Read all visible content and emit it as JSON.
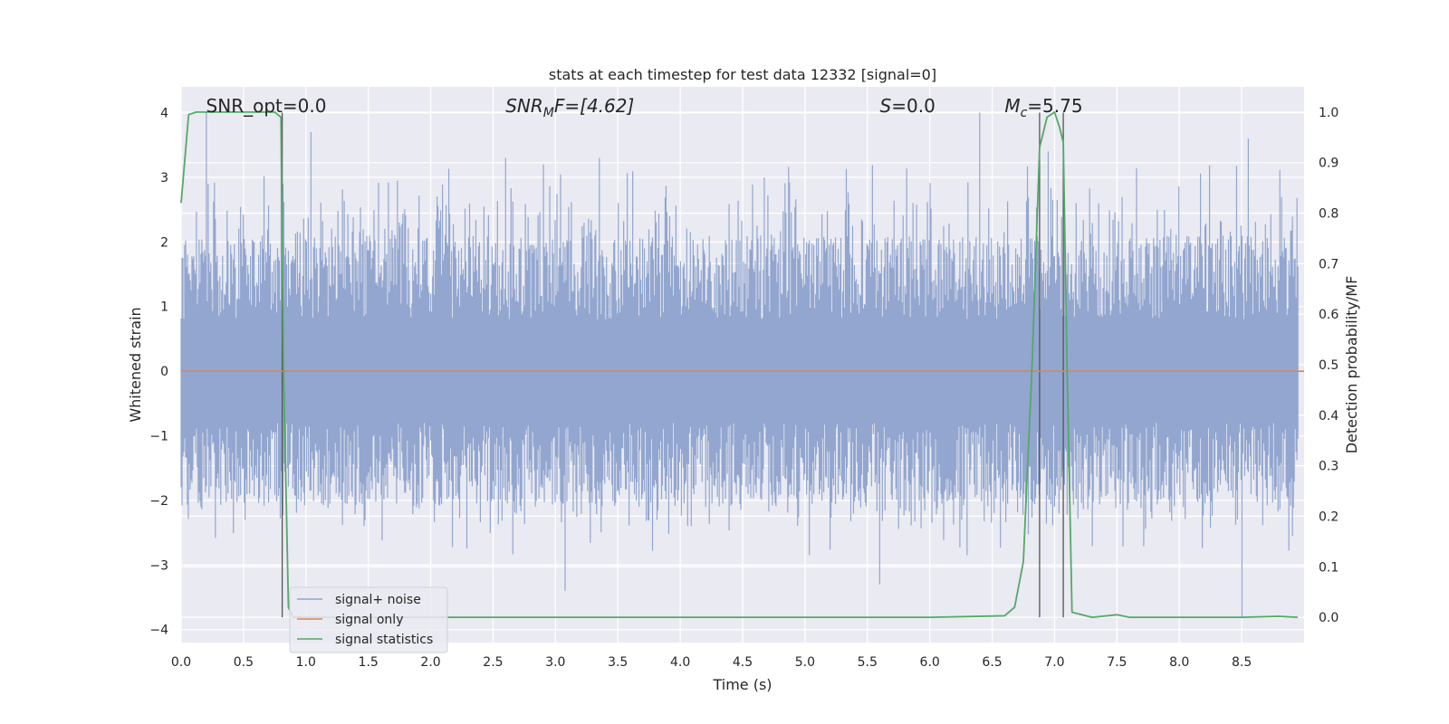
{
  "chart_data": {
    "type": "line",
    "title": "stats at each timestep for test data 12332 [signal=0]",
    "xlabel": "Time (s)",
    "ylabel": "Whitened strain",
    "y2label": "Detection probability/MF",
    "xlim": [
      0.0,
      9.0
    ],
    "ylim": [
      -4.2,
      4.4
    ],
    "y2lim": [
      -0.05,
      1.05
    ],
    "xticks": [
      0.0,
      0.5,
      1.0,
      1.5,
      2.0,
      2.5,
      3.0,
      3.5,
      4.0,
      4.5,
      5.0,
      5.5,
      6.0,
      6.5,
      7.0,
      7.5,
      8.0,
      8.5
    ],
    "xtick_labels": [
      "0.0",
      "0.5",
      "1.0",
      "1.5",
      "2.0",
      "2.5",
      "3.0",
      "3.5",
      "4.0",
      "4.5",
      "5.0",
      "5.5",
      "6.0",
      "6.5",
      "7.0",
      "7.5",
      "8.0",
      "8.5"
    ],
    "yticks": [
      -4,
      -3,
      -2,
      -1,
      0,
      1,
      2,
      3,
      4
    ],
    "ytick_labels": [
      "−4",
      "−3",
      "−2",
      "−1",
      "0",
      "1",
      "2",
      "3",
      "4"
    ],
    "y2ticks": [
      0.0,
      0.1,
      0.2,
      0.3,
      0.4,
      0.5,
      0.6,
      0.7,
      0.8,
      0.9,
      1.0
    ],
    "y2tick_labels": [
      "0.0",
      "0.1",
      "0.2",
      "0.3",
      "0.4",
      "0.5",
      "0.6",
      "0.7",
      "0.8",
      "0.9",
      "1.0"
    ],
    "grid": true,
    "legend_position": "lower-left",
    "annotations": {
      "snr_opt": {
        "label": "SNR_opt=0.0",
        "x": 0.2
      },
      "snr_mf": {
        "prefix": "SNR",
        "sub": "M",
        "suffix": "F=[4.62]",
        "x": 2.6
      },
      "s_stat": {
        "main": "S",
        "rest": "=0.0",
        "x": 5.6
      },
      "mc": {
        "main": "M",
        "sub": "c",
        "rest": "=5.75",
        "x": 6.6
      }
    },
    "vertical_markers_seconds": [
      0.81,
      6.88,
      7.07
    ],
    "series": [
      {
        "name": "signal+ noise",
        "color": "#92a6cf",
        "kind": "noise",
        "axis": "left",
        "typical_envelope": [
          -2.4,
          2.7
        ],
        "spike_peaks": [
          {
            "x": 0.2,
            "y": 4.0
          },
          {
            "x": 0.8,
            "y": 3.9
          },
          {
            "x": 1.04,
            "y": 3.7
          },
          {
            "x": 2.6,
            "y": 3.3
          },
          {
            "x": 3.35,
            "y": 3.3
          },
          {
            "x": 6.4,
            "y": 4.0
          },
          {
            "x": 6.95,
            "y": 3.4
          },
          {
            "x": 8.55,
            "y": 3.6
          },
          {
            "x": 3.08,
            "y": -3.4
          },
          {
            "x": 5.6,
            "y": -3.3
          },
          {
            "x": 8.5,
            "y": -3.8
          }
        ]
      },
      {
        "name": "signal only",
        "color": "#dd8452",
        "kind": "line",
        "axis": "left",
        "x": [
          0.0,
          9.0
        ],
        "y": [
          0.0,
          0.0
        ]
      },
      {
        "name": "signal statistics",
        "color": "#55a868",
        "kind": "line",
        "axis": "right",
        "x": [
          0.0,
          0.06,
          0.12,
          0.2,
          0.5,
          0.75,
          0.8,
          0.82,
          0.86,
          0.9,
          1.0,
          2.0,
          3.0,
          4.0,
          5.0,
          6.0,
          6.6,
          6.68,
          6.75,
          6.82,
          6.88,
          6.94,
          7.0,
          7.04,
          7.07,
          7.1,
          7.14,
          7.3,
          7.5,
          7.6,
          8.0,
          8.5,
          8.8,
          8.95
        ],
        "y": [
          0.82,
          0.995,
          1.0,
          1.0,
          1.0,
          1.0,
          0.99,
          0.5,
          0.02,
          0.0,
          0.0,
          0.0,
          0.0,
          0.0,
          0.0,
          0.0,
          0.003,
          0.02,
          0.11,
          0.5,
          0.93,
          0.99,
          1.0,
          0.97,
          0.94,
          0.5,
          0.01,
          0.0,
          0.005,
          0.0,
          0.0,
          0.0,
          0.002,
          0.0
        ]
      }
    ]
  }
}
